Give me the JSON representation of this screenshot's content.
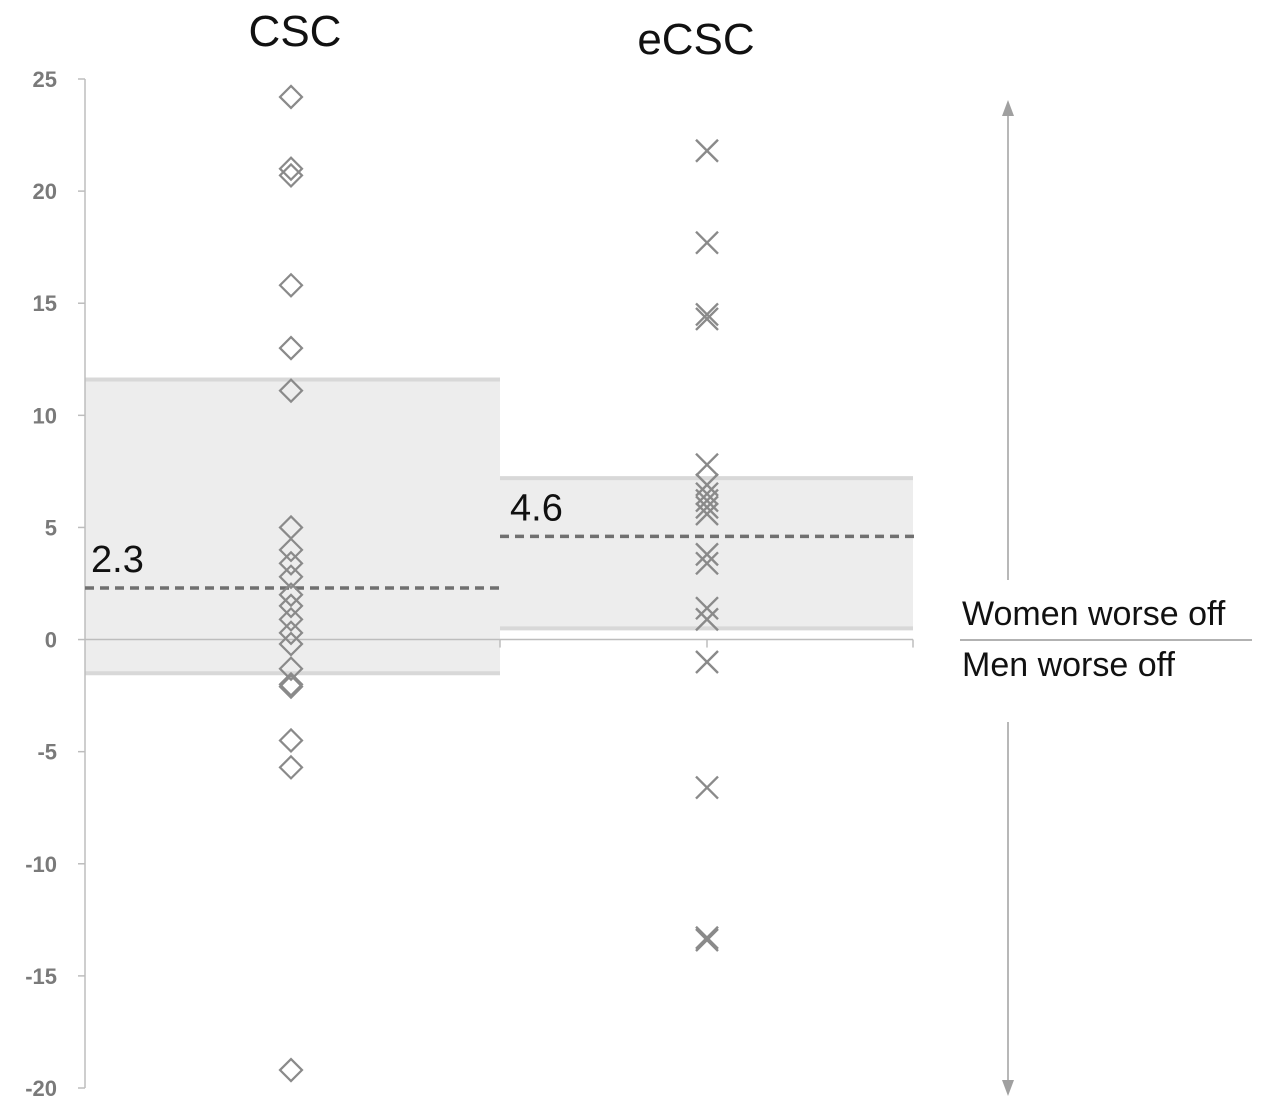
{
  "chart_data": {
    "type": "scatter",
    "ylim": [
      -20,
      25
    ],
    "y_ticks": [
      "25",
      "20",
      "15",
      "10",
      "5",
      "0",
      "-5",
      "-10",
      "-15",
      "-20"
    ],
    "grid": false,
    "series": [
      {
        "name": "CSC",
        "marker": "diamond",
        "values": [
          24.2,
          21.0,
          20.7,
          15.8,
          13.0,
          11.1,
          5.0,
          4.0,
          3.4,
          2.8,
          2.0,
          1.5,
          0.9,
          0.3,
          -0.2,
          -1.3,
          -2.0,
          -2.1,
          -4.5,
          -5.7,
          -19.2
        ],
        "mean": 2.3,
        "mean_label": "2.3",
        "band": [
          -1.5,
          11.6
        ]
      },
      {
        "name": "eCSC",
        "marker": "cross",
        "values": [
          21.8,
          17.7,
          14.5,
          14.3,
          7.8,
          6.9,
          6.5,
          6.2,
          5.9,
          5.6,
          3.8,
          3.4,
          1.4,
          0.9,
          -1.0,
          -6.6,
          -13.3,
          -13.4
        ],
        "mean": 4.6,
        "mean_label": "4.6",
        "band": [
          0.5,
          7.2
        ]
      }
    ],
    "annotations": {
      "upper": "Women worse off",
      "lower": "Men worse off"
    },
    "colors": {
      "band_fill": "#ededed",
      "band_edge": "#d8d8d8",
      "marker": "#8a8a8a",
      "mean_line": "#707070",
      "axis": "#bdbdbd"
    }
  }
}
